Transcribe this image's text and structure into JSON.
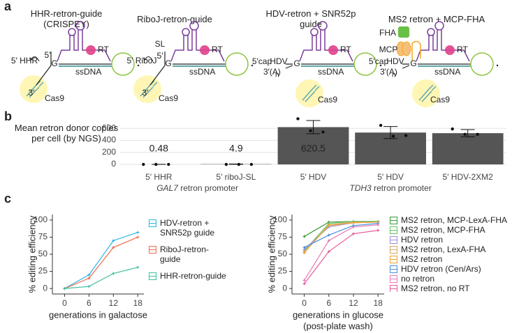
{
  "panel_labels": [
    "a",
    "b",
    "c"
  ],
  "diagrams": [
    {
      "title": "HHR-retron-guide (CRISPEY)",
      "labels": {
        "promoter": "5′ HHR",
        "five": "5′",
        "g": "G",
        "rt": "RT",
        "ssdna": "ssDNA",
        "three": "3′",
        "cas9": "Cas9"
      }
    },
    {
      "title": "RiboJ-retron-guide",
      "labels": {
        "promoter": "5′ RiboJ",
        "sl": "SL",
        "five": "5′",
        "g": "G",
        "rt": "RT",
        "ssdna": "ssDNA",
        "three": "3′",
        "cas9": "Cas9"
      }
    },
    {
      "title": "HDV-retron + SNR52p guide",
      "labels": {
        "cap": "5′cap",
        "hdv": "HDV",
        "polya": "3′(A)",
        "polya_sub": "n",
        "g": "G",
        "rt": "RT",
        "ssdna": "ssDNA",
        "cas9": "Cas9"
      }
    },
    {
      "title": "MS2 retron + MCP-FHA",
      "labels": {
        "fha": "FHA",
        "mcp": "MCP",
        "cap": "5′cap",
        "hdv": "HDV",
        "polya": "3′(A)",
        "polya_sub": "n",
        "g": "G",
        "rt": "RT",
        "ssdna": "ssDNA",
        "cas9": "Cas9"
      }
    }
  ],
  "chart_data": [
    {
      "type": "bar",
      "ylabel": "Mean retron donor copies per cell (by NGS)",
      "categories": [
        "5′ HHR",
        "5′ riboJ-SL",
        "5′ HDV",
        "5′ HDV",
        "5′ HDV-2XM2"
      ],
      "values": [
        0.48,
        4.9,
        620.5,
        530,
        520
      ],
      "value_labels": [
        "0.48",
        "4.9",
        "620.5",
        null,
        null
      ],
      "errors": [
        0.3,
        3,
        110,
        100,
        60
      ],
      "points": [
        [
          0,
          0,
          0
        ],
        [
          0,
          0,
          0
        ],
        [
          760,
          560,
          540
        ],
        [
          650,
          470,
          480
        ],
        [
          590,
          500,
          500
        ]
      ],
      "groups": [
        {
          "gene": "GAL7",
          "label": "retron promoter"
        },
        {
          "gene": "TDH3",
          "label": "retron promoter"
        }
      ],
      "color": "#555555",
      "ylim": [
        0,
        800
      ],
      "yticks": [
        0,
        200,
        400,
        600
      ],
      "grid": true
    },
    {
      "type": "line",
      "xlabel": "generations in galactose",
      "ylabel": "% editing efficiency",
      "x": [
        0,
        6,
        12,
        18
      ],
      "xlim": [
        -3,
        19.5
      ],
      "xticks": [
        0,
        6,
        12,
        18
      ],
      "ylim": [
        -8,
        108
      ],
      "yticks": [
        0,
        25,
        50,
        75,
        100
      ],
      "series": [
        {
          "name": "HDV-retron + SNR52p guide",
          "color": "#29b6e6",
          "values": [
            0,
            20,
            70,
            82
          ]
        },
        {
          "name": "RiboJ-retron-guide",
          "color": "#f26b4f",
          "values": [
            0,
            15,
            60,
            75
          ]
        },
        {
          "name": "HHR-retron-guide",
          "color": "#3cc0a0",
          "values": [
            0,
            3,
            22,
            31
          ]
        }
      ]
    },
    {
      "type": "line",
      "xlabel": "generations in glucose",
      "xlabel_note": "(post-plate wash)",
      "ylabel": "% editing efficiency",
      "x": [
        0,
        6,
        12,
        18
      ],
      "xlim": [
        -3,
        19.5
      ],
      "xticks": [
        0,
        6,
        12,
        18
      ],
      "ylim": [
        -8,
        108
      ],
      "yticks": [
        0,
        25,
        50,
        75,
        100
      ],
      "series": [
        {
          "name": "MS2 retron, MCP-LexA-FHA",
          "color": "#3a9a3a",
          "values": [
            76,
            97,
            98,
            98
          ]
        },
        {
          "name": "MS2 retron, MCP-FHA",
          "color": "#66c266",
          "values": [
            55,
            95,
            98,
            98
          ]
        },
        {
          "name": "HDV retron",
          "color": "#9b8fd6",
          "values": [
            57,
            90,
            96,
            97
          ]
        },
        {
          "name": "MS2 retron, LexA-FHA",
          "color": "#d9a86a",
          "values": [
            52,
            93,
            97,
            97
          ]
        },
        {
          "name": "MS2 retron",
          "color": "#f0a030",
          "values": [
            53,
            92,
            96,
            97
          ]
        },
        {
          "name": "HDV retron (Cen/Ars)",
          "color": "#4a90d9",
          "values": [
            60,
            78,
            92,
            95
          ]
        },
        {
          "name": "no retron",
          "color": "#e87ab8",
          "values": [
            12,
            70,
            90,
            93
          ]
        },
        {
          "name": "MS2 retron, no RT",
          "color": "#e85a9a",
          "values": [
            7,
            54,
            80,
            85
          ]
        }
      ]
    }
  ]
}
